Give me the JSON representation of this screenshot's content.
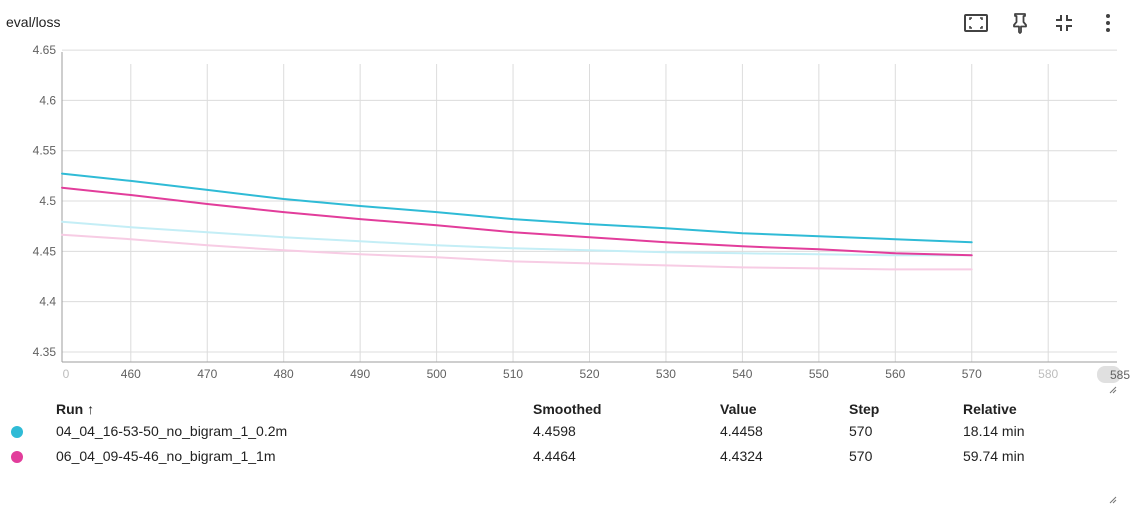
{
  "header": {
    "title": "eval/loss"
  },
  "toolbar": {
    "icons": [
      "fit-domain-icon",
      "pin-icon",
      "collapse-icon",
      "more-vert-icon"
    ]
  },
  "colors": {
    "run1": "#2fbbd6",
    "run1_raw": "#c4eef6",
    "run2": "#e23d9b",
    "run2_raw": "#f7cce4",
    "grid": "#dcdcdc",
    "axis": "#9e9e9e"
  },
  "chart_data": {
    "type": "line",
    "title": "eval/loss",
    "xlabel": "",
    "ylabel": "",
    "xlim": [
      451,
      589
    ],
    "ylim": [
      4.34,
      4.66
    ],
    "x_ticks": [
      460,
      470,
      480,
      490,
      500,
      510,
      520,
      530,
      540,
      550,
      560,
      570,
      580
    ],
    "x_tick_labels": [
      "460",
      "470",
      "480",
      "490",
      "500",
      "510",
      "520",
      "530",
      "540",
      "550",
      "560",
      "570",
      "580"
    ],
    "x_edge_labels": [
      "0",
      "585"
    ],
    "y_ticks": [
      4.35,
      4.4,
      4.45,
      4.5,
      4.55,
      4.6,
      4.65
    ],
    "y_tick_labels": [
      "4.35",
      "4.4",
      "4.45",
      "4.5",
      "4.55",
      "4.6",
      "4.65"
    ],
    "grid": true,
    "series": [
      {
        "name": "04_04_16-53-50_no_bigram_1_0.2m",
        "kind": "smoothed",
        "x": [
          450,
          460,
          470,
          480,
          490,
          500,
          510,
          520,
          530,
          540,
          550,
          560,
          570
        ],
        "y": [
          4.528,
          4.52,
          4.511,
          4.502,
          4.495,
          4.489,
          4.482,
          4.477,
          4.473,
          4.468,
          4.465,
          4.462,
          4.459
        ]
      },
      {
        "name": "04_04_16-53-50_no_bigram_1_0.2m",
        "kind": "raw",
        "x": [
          450,
          460,
          470,
          480,
          490,
          500,
          510,
          520,
          530,
          540,
          550,
          560,
          570
        ],
        "y": [
          4.48,
          4.474,
          4.469,
          4.464,
          4.46,
          4.456,
          4.453,
          4.451,
          4.449,
          4.448,
          4.447,
          4.446,
          4.446
        ]
      },
      {
        "name": "06_04_09-45-46_no_bigram_1_1m",
        "kind": "smoothed",
        "x": [
          450,
          460,
          470,
          480,
          490,
          500,
          510,
          520,
          530,
          540,
          550,
          560,
          570
        ],
        "y": [
          4.514,
          4.506,
          4.497,
          4.489,
          4.482,
          4.476,
          4.469,
          4.464,
          4.459,
          4.455,
          4.452,
          4.448,
          4.446
        ]
      },
      {
        "name": "06_04_09-45-46_no_bigram_1_1m",
        "kind": "raw",
        "x": [
          450,
          460,
          470,
          480,
          490,
          500,
          510,
          520,
          530,
          540,
          550,
          560,
          570
        ],
        "y": [
          4.467,
          4.462,
          4.456,
          4.451,
          4.447,
          4.444,
          4.44,
          4.438,
          4.436,
          4.434,
          4.433,
          4.432,
          4.432
        ]
      }
    ]
  },
  "table": {
    "headers": {
      "run": "Run ↑",
      "smoothed": "Smoothed",
      "value": "Value",
      "step": "Step",
      "relative": "Relative"
    },
    "rows": [
      {
        "run": "04_04_16-53-50_no_bigram_1_0.2m",
        "smoothed": "4.4598",
        "value": "4.4458",
        "step": "570",
        "relative": "18.14 min",
        "color": "#2fbbd6"
      },
      {
        "run": "06_04_09-45-46_no_bigram_1_1m",
        "smoothed": "4.4464",
        "value": "4.4324",
        "step": "570",
        "relative": "59.74 min",
        "color": "#e23d9b"
      }
    ]
  }
}
